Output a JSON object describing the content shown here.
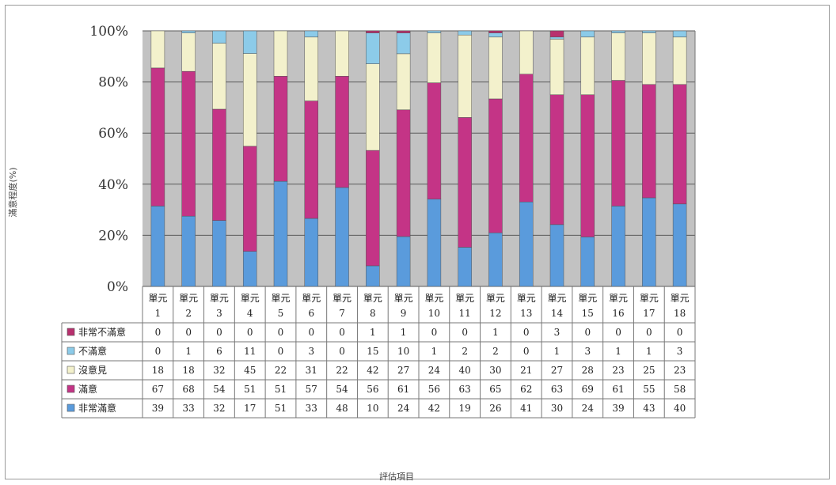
{
  "chart_data": {
    "type": "bar",
    "stacked": "percent",
    "ylabel": "滿意程度(%)",
    "xlabel": "評估項目",
    "yticks": [
      "0%",
      "20%",
      "40%",
      "60%",
      "80%",
      "100%"
    ],
    "ylim": [
      0,
      100
    ],
    "grid": true,
    "categories": [
      {
        "line1": "單元",
        "line2": "1"
      },
      {
        "line1": "單元",
        "line2": "2"
      },
      {
        "line1": "單元",
        "line2": "3"
      },
      {
        "line1": "單元",
        "line2": "4"
      },
      {
        "line1": "單元",
        "line2": "5"
      },
      {
        "line1": "單元",
        "line2": "6"
      },
      {
        "line1": "單元",
        "line2": "7"
      },
      {
        "line1": "單元",
        "line2": "8"
      },
      {
        "line1": "單元",
        "line2": "9"
      },
      {
        "line1": "單元",
        "line2": "10"
      },
      {
        "line1": "單元",
        "line2": "11"
      },
      {
        "line1": "單元",
        "line2": "12"
      },
      {
        "line1": "單元",
        "line2": "13"
      },
      {
        "line1": "單元",
        "line2": "14"
      },
      {
        "line1": "單元",
        "line2": "15"
      },
      {
        "line1": "單元",
        "line2": "16"
      },
      {
        "line1": "單元",
        "line2": "17"
      },
      {
        "line1": "單元",
        "line2": "18"
      }
    ],
    "series": [
      {
        "name": "非常不滿意",
        "color": "#b8306e",
        "values": [
          0,
          0,
          0,
          0,
          0,
          0,
          0,
          1,
          1,
          0,
          0,
          1,
          0,
          3,
          0,
          0,
          0,
          0
        ]
      },
      {
        "name": "不滿意",
        "color": "#8ccbe9",
        "values": [
          0,
          1,
          6,
          11,
          0,
          3,
          0,
          15,
          10,
          1,
          2,
          2,
          0,
          1,
          3,
          1,
          1,
          3
        ]
      },
      {
        "name": "沒意見",
        "color": "#f3f1cc",
        "values": [
          18,
          18,
          32,
          45,
          22,
          31,
          22,
          42,
          27,
          24,
          40,
          30,
          21,
          27,
          28,
          23,
          25,
          23
        ]
      },
      {
        "name": "滿意",
        "color": "#c43486",
        "values": [
          67,
          68,
          54,
          51,
          51,
          57,
          54,
          56,
          61,
          56,
          63,
          65,
          62,
          63,
          69,
          61,
          55,
          58
        ]
      },
      {
        "name": "非常滿意",
        "color": "#5a9bdc",
        "values": [
          39,
          33,
          32,
          17,
          51,
          33,
          48,
          10,
          24,
          42,
          19,
          26,
          41,
          30,
          24,
          39,
          43,
          40
        ]
      }
    ]
  }
}
